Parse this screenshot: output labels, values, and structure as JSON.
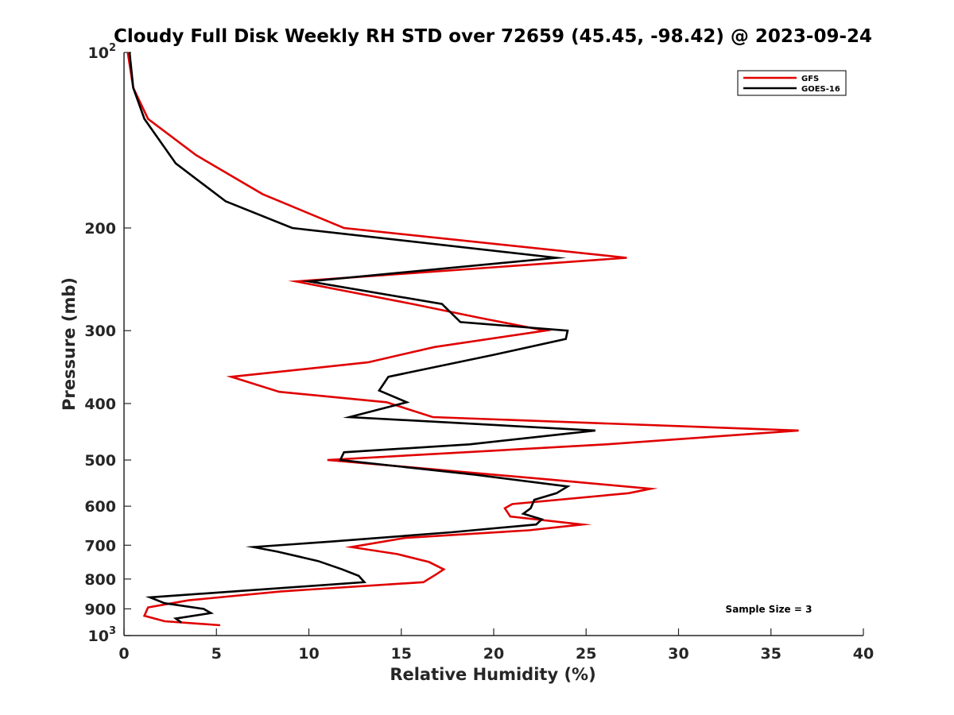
{
  "chart_data": {
    "type": "line",
    "title": "Cloudy Full Disk Weekly RH STD over 72659 (45.45, -98.42) @ 2023-09-24",
    "xlabel": "Relative Humidity (%)",
    "ylabel": "Pressure (mb)",
    "xlim": [
      0,
      40
    ],
    "ylim": [
      100,
      1000
    ],
    "y_scale": "log",
    "y_reversed": true,
    "grid": false,
    "legend_position": "top-right",
    "x_ticks": [
      "0",
      "5",
      "10",
      "15",
      "20",
      "25",
      "30",
      "35",
      "40"
    ],
    "y_ticks": [
      {
        "value": 100,
        "base": "10",
        "exp": "2"
      },
      {
        "value": 200,
        "label": "200"
      },
      {
        "value": 300,
        "label": "300"
      },
      {
        "value": 400,
        "label": "400"
      },
      {
        "value": 500,
        "label": "500"
      },
      {
        "value": 600,
        "label": "600"
      },
      {
        "value": 700,
        "label": "700"
      },
      {
        "value": 800,
        "label": "800"
      },
      {
        "value": 900,
        "label": "900"
      },
      {
        "value": 1000,
        "base": "10",
        "exp": "3"
      }
    ],
    "series": [
      {
        "name": "GFS",
        "color": "#e00000",
        "points": [
          [
            0.2,
            100
          ],
          [
            0.5,
            115
          ],
          [
            1.3,
            130
          ],
          [
            3.9,
            150
          ],
          [
            7.5,
            175
          ],
          [
            11.9,
            200
          ],
          [
            27.2,
            225
          ],
          [
            9.3,
            247
          ],
          [
            15.6,
            270
          ],
          [
            19.2,
            285
          ],
          [
            22.8,
            300
          ],
          [
            16.8,
            320
          ],
          [
            13.2,
            340
          ],
          [
            5.8,
            360
          ],
          [
            8.4,
            382
          ],
          [
            14.2,
            398
          ],
          [
            16.7,
            422
          ],
          [
            36.5,
            445
          ],
          [
            26.1,
            470
          ],
          [
            11.0,
            500
          ],
          [
            23.0,
            540
          ],
          [
            28.5,
            560
          ],
          [
            27.3,
            570
          ],
          [
            21.0,
            595
          ],
          [
            20.6,
            605
          ],
          [
            20.9,
            625
          ],
          [
            24.8,
            645
          ],
          [
            21.9,
            660
          ],
          [
            15.2,
            680
          ],
          [
            12.3,
            705
          ],
          [
            14.8,
            725
          ],
          [
            16.5,
            748
          ],
          [
            17.3,
            770
          ],
          [
            16.9,
            785
          ],
          [
            16.2,
            810
          ],
          [
            8.5,
            840
          ],
          [
            3.5,
            870
          ],
          [
            1.3,
            895
          ],
          [
            1.1,
            925
          ],
          [
            2.2,
            945
          ],
          [
            5.2,
            960
          ]
        ]
      },
      {
        "name": "GOES-16",
        "color": "#000000",
        "points": [
          [
            0.3,
            100
          ],
          [
            0.5,
            115
          ],
          [
            1.1,
            130
          ],
          [
            2.8,
            155
          ],
          [
            5.5,
            180
          ],
          [
            9.1,
            200
          ],
          [
            23.4,
            225
          ],
          [
            10.0,
            247
          ],
          [
            17.2,
            270
          ],
          [
            18.2,
            290
          ],
          [
            24.0,
            300
          ],
          [
            23.9,
            310
          ],
          [
            20.0,
            330
          ],
          [
            14.3,
            360
          ],
          [
            13.8,
            380
          ],
          [
            15.3,
            398
          ],
          [
            12.2,
            422
          ],
          [
            25.5,
            445
          ],
          [
            18.7,
            470
          ],
          [
            11.9,
            485
          ],
          [
            11.7,
            500
          ],
          [
            19.0,
            530
          ],
          [
            24.0,
            555
          ],
          [
            23.4,
            570
          ],
          [
            22.2,
            585
          ],
          [
            22.0,
            605
          ],
          [
            21.6,
            618
          ],
          [
            22.6,
            632
          ],
          [
            22.3,
            645
          ],
          [
            17.7,
            665
          ],
          [
            11.2,
            690
          ],
          [
            7.0,
            705
          ],
          [
            8.3,
            718
          ],
          [
            10.5,
            745
          ],
          [
            11.8,
            770
          ],
          [
            12.7,
            790
          ],
          [
            13.0,
            810
          ],
          [
            1.4,
            860
          ],
          [
            2.2,
            880
          ],
          [
            4.3,
            900
          ],
          [
            4.7,
            915
          ],
          [
            2.8,
            935
          ],
          [
            3.1,
            950
          ]
        ]
      }
    ],
    "annotations": [
      "Sample Size = 3"
    ]
  }
}
